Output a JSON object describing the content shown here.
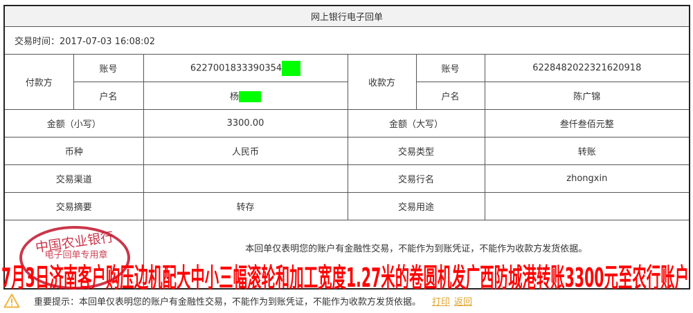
{
  "title": "网上银行电子回单",
  "transaction_time": "交易时间：2017-07-03 16:08:02",
  "payer": {
    "label": "付款方",
    "account_label": "账号",
    "account": "6227001833390354",
    "name_label": "户名",
    "name": "杨"
  },
  "payee": {
    "label": "收款方",
    "account_label": "账号",
    "account": "6228482022321620918",
    "name_label": "户名",
    "name": "陈广锦"
  },
  "rows": [
    {
      "l1": "金额（小写）",
      "v1": "3300.00",
      "l2": "金额（大写）",
      "v2": "叁仟叁佰元整"
    },
    {
      "l1": "币种",
      "v1": "人民币",
      "l2": "交易类型",
      "v2": "转账"
    },
    {
      "l1": "交易渠道",
      "v1": "",
      "l2": "交易行名",
      "v2": "zhongxin"
    },
    {
      "l1": "交易摘要",
      "v1": "转存",
      "l2": "交易用途",
      "v2": ""
    }
  ],
  "notice": "本回单仅表明您的账户有金融性交易，不能作为到账凭证，不能作为收款方发货依据。",
  "stamp": {
    "top": "中国农业银行",
    "bottom": "电子回单专用章",
    "color": "#c0142b"
  },
  "overlay_text": "7月3日济南客户购压边机配大中小三幅滚轮和加工宽度1.27米的卷圆机发广西防城港转账3300元至农行账户",
  "footer": {
    "tip": "重要提示：本回单仅表明您的账户有金融性交易，不能作为到账凭证，不能作为收款方发货依据。",
    "print": "打印",
    "back": "返回",
    "icon": "warning-icon"
  },
  "colors": {
    "mask": "#00ff00",
    "link": "#e0a32b",
    "overlay": "#ff0000"
  }
}
